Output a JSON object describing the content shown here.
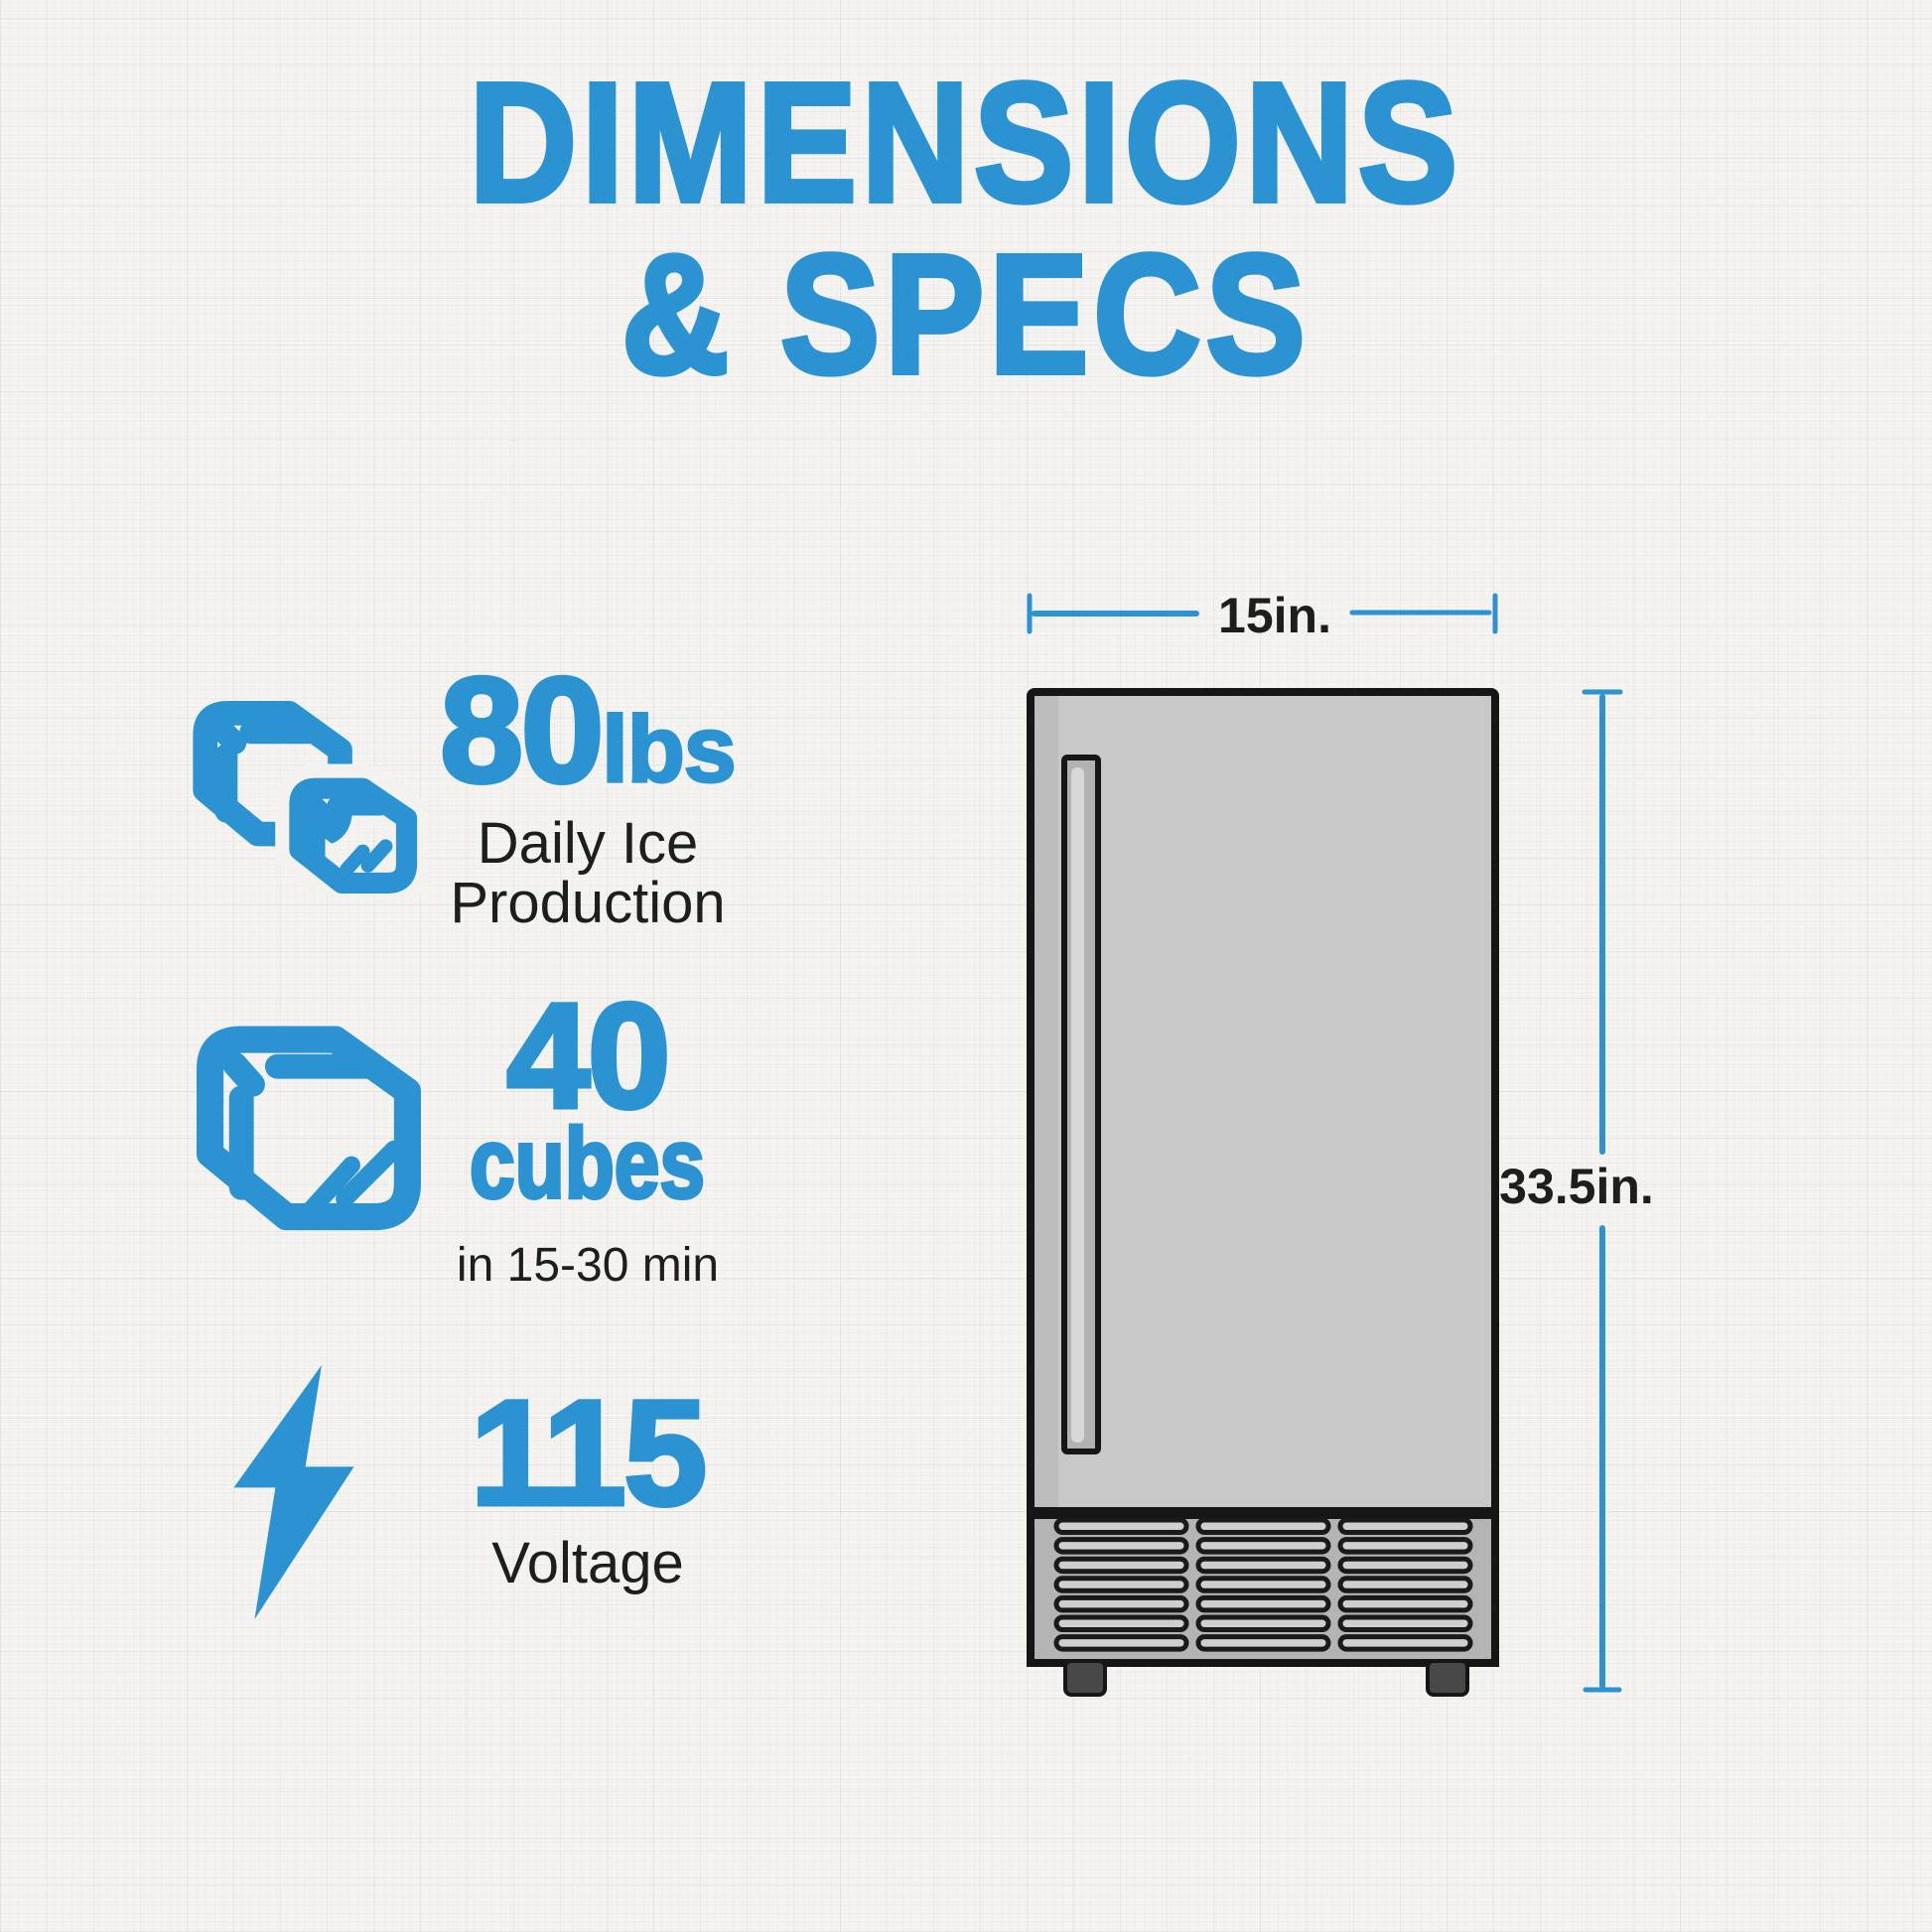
{
  "colors": {
    "accent": "#2B93D2",
    "ink": "#1E1E1C"
  },
  "title": {
    "line1": "DIMENSIONS",
    "line2": "& SPECS"
  },
  "specs": [
    {
      "icon": "ice-cubes-icon",
      "value": "80",
      "unit": "lbs",
      "caption_line1": "Daily Ice",
      "caption_line2": "Production"
    },
    {
      "icon": "ice-cube-icon",
      "value": "40",
      "unit": "cubes",
      "caption_line1": "in 15-30 min"
    },
    {
      "icon": "lightning-bolt-icon",
      "value": "115",
      "caption_line1": "Voltage"
    }
  ],
  "diagram": {
    "width_label": "15in.",
    "height_label": "33.5in."
  }
}
